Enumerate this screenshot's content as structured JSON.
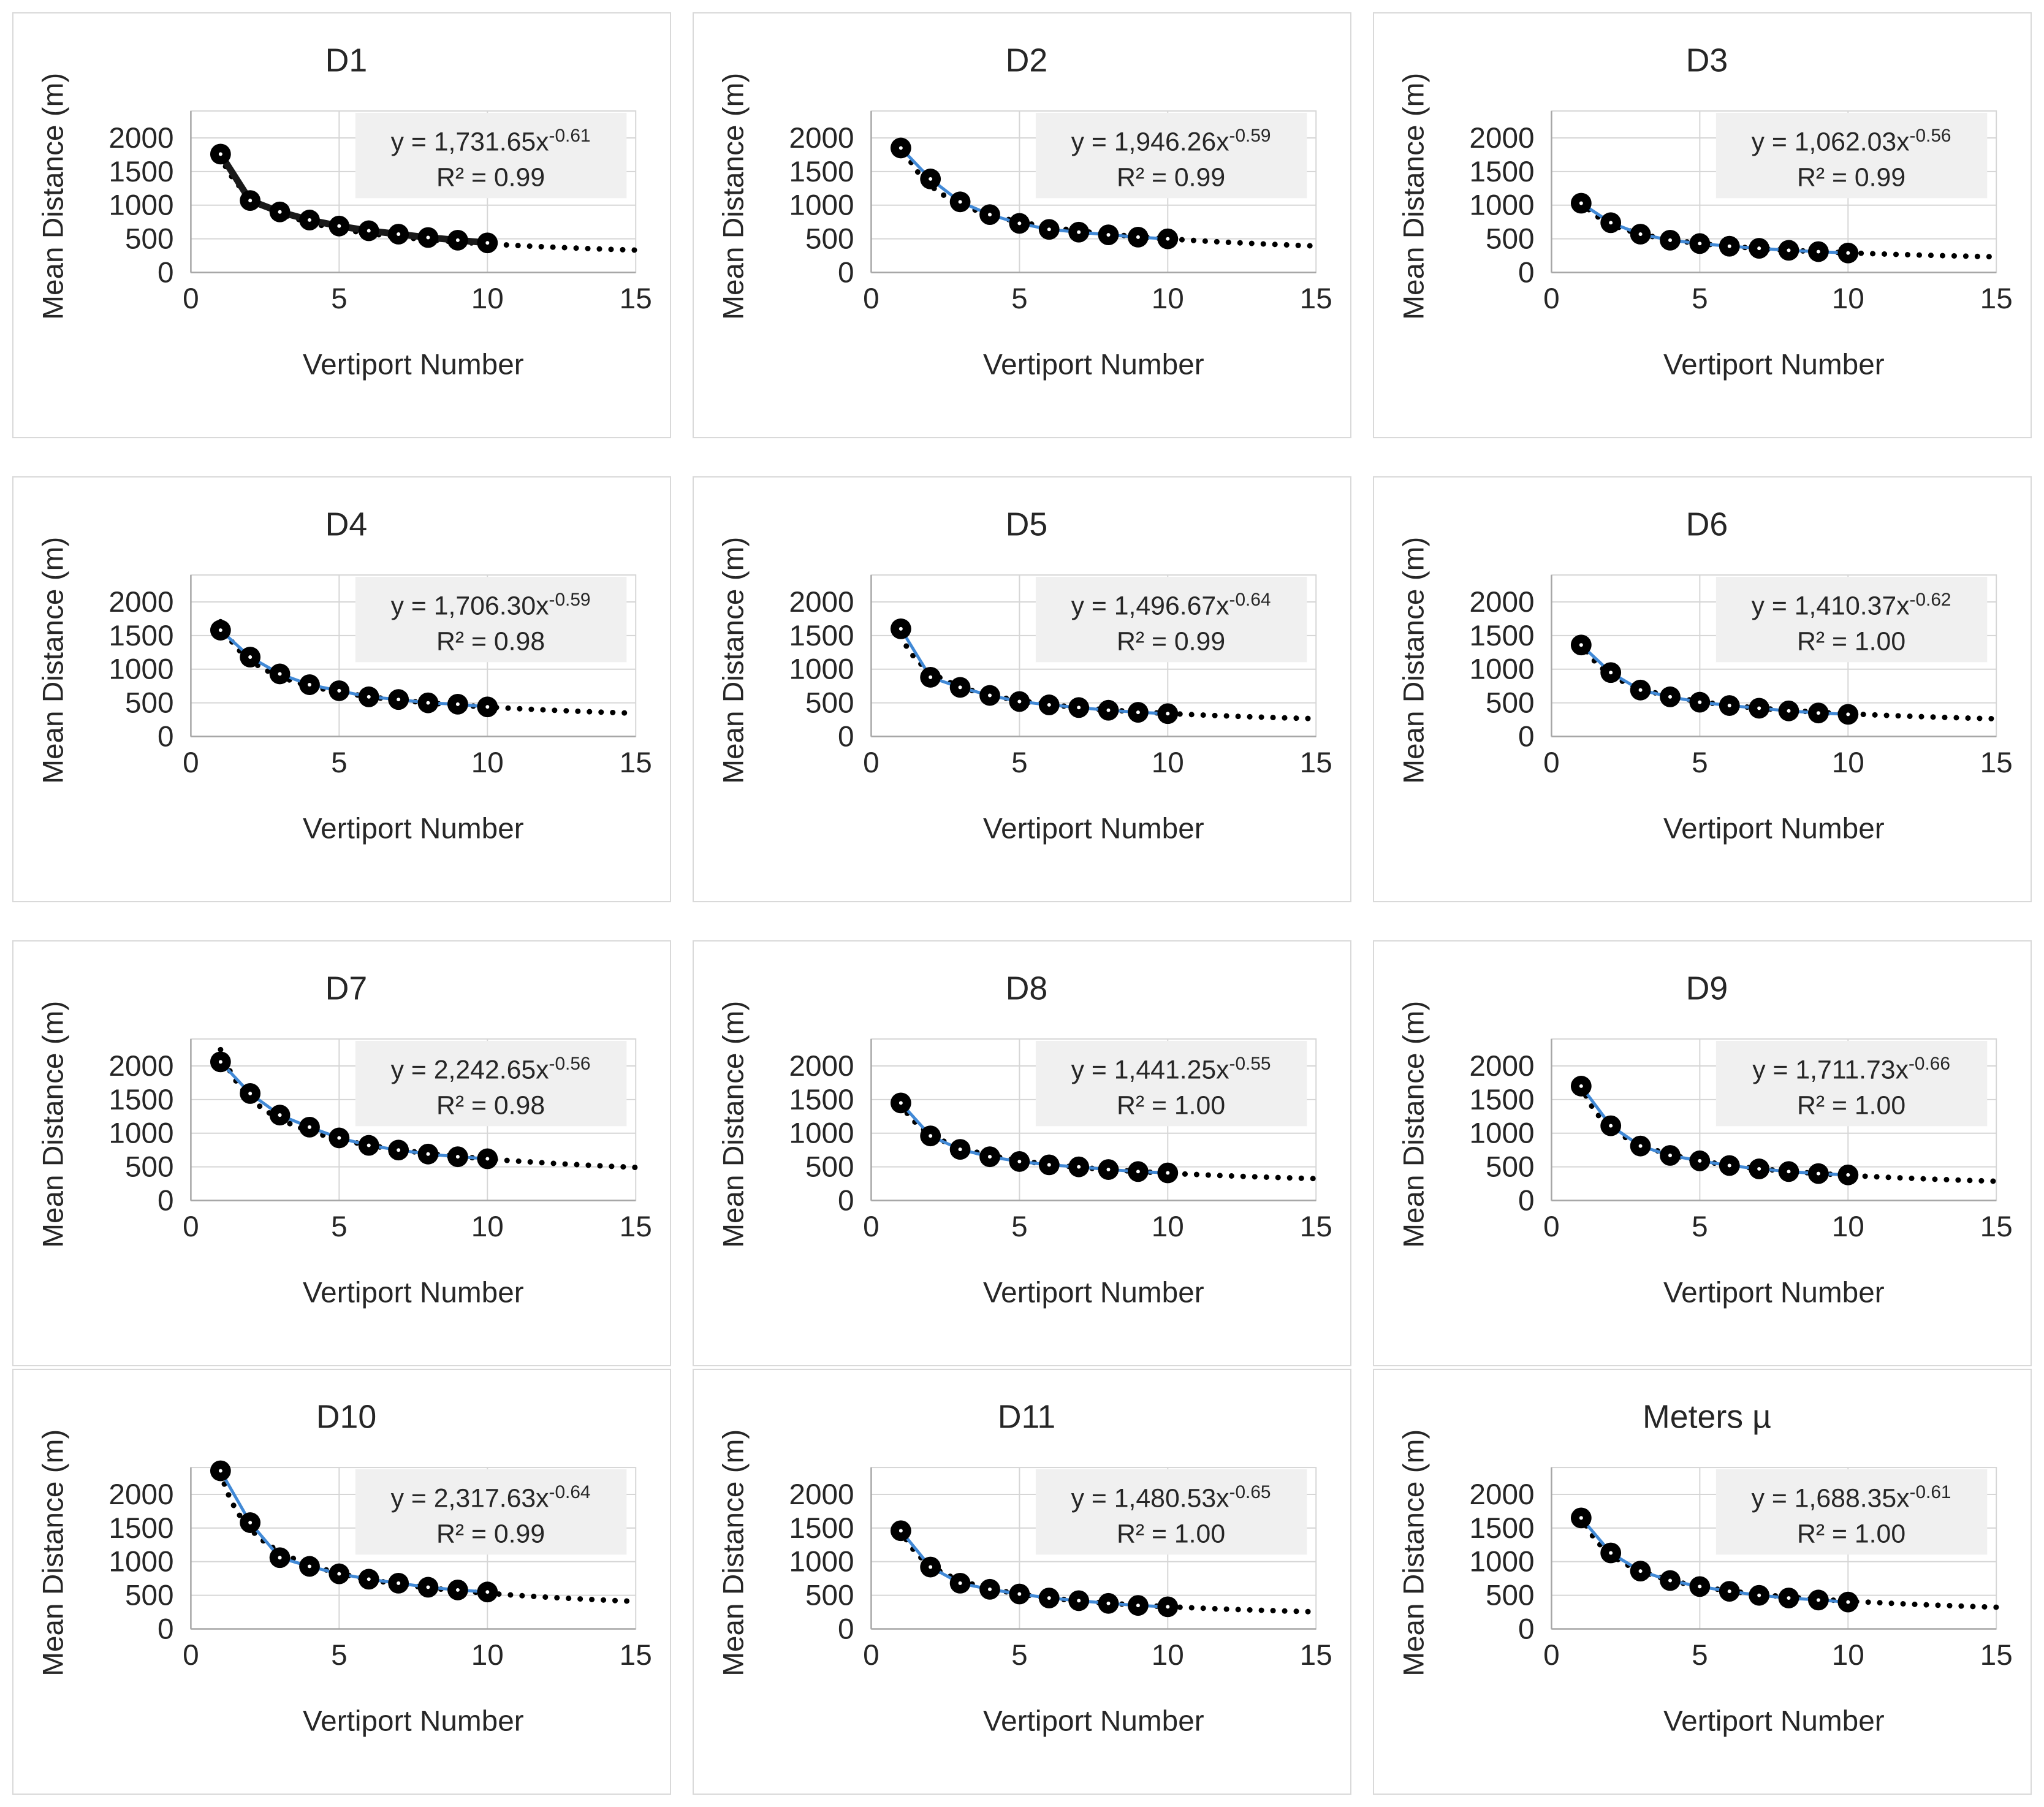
{
  "figure": {
    "y_axis_label": "Mean Distance (m)",
    "x_axis_label": "Vertiport Number",
    "y_ticks": [
      "0",
      "500",
      "1000",
      "1500",
      "2000"
    ],
    "x_ticks": [
      "0",
      "5",
      "10",
      "15"
    ],
    "colors": {
      "panel_border": "#d9d9d9",
      "gridline": "#d6d6d6",
      "axis_line": "#a6a6a6",
      "marker": "#000000",
      "marker_center": "#ffffff",
      "series_blue": "#4189d6",
      "series_black": "#1a1a1a",
      "trendline": "#000000",
      "equation_bg": "#f0f0f0",
      "text": "#262626"
    }
  },
  "chart_data": [
    {
      "type": "scatter",
      "title": "D1",
      "xlabel": "Vertiport Number",
      "ylabel": "Mean Distance (m)",
      "xlim": [
        0,
        15
      ],
      "ylim": [
        0,
        2400
      ],
      "x": [
        1,
        2,
        3,
        4,
        5,
        6,
        7,
        8,
        9,
        10
      ],
      "y": [
        1760,
        1070,
        900,
        780,
        690,
        620,
        570,
        520,
        480,
        440
      ],
      "trend": {
        "a": 1731.65,
        "b": -0.61,
        "range": [
          1,
          15
        ]
      },
      "equation": {
        "base": "y = 1,731.65x",
        "exponent": "-0.61",
        "r2": "R² = 0.99"
      },
      "series_color": "#1a1a1a",
      "series_width": 11
    },
    {
      "type": "scatter",
      "title": "D2",
      "xlabel": "Vertiport Number",
      "ylabel": "Mean Distance (m)",
      "xlim": [
        0,
        15
      ],
      "ylim": [
        0,
        2400
      ],
      "x": [
        1,
        2,
        3,
        4,
        5,
        6,
        7,
        8,
        9,
        10
      ],
      "y": [
        1850,
        1390,
        1050,
        860,
        730,
        640,
        600,
        560,
        525,
        500
      ],
      "trend": {
        "a": 1946.26,
        "b": -0.59,
        "range": [
          1,
          15
        ]
      },
      "equation": {
        "base": "y = 1,946.26x",
        "exponent": "-0.59",
        "r2": "R² = 0.99"
      },
      "series_color": "#4189d6",
      "series_width": 5
    },
    {
      "type": "scatter",
      "title": "D3",
      "xlabel": "Vertiport Number",
      "ylabel": "Mean Distance (m)",
      "xlim": [
        0,
        15
      ],
      "ylim": [
        0,
        2400
      ],
      "x": [
        1,
        2,
        3,
        4,
        5,
        6,
        7,
        8,
        9,
        10
      ],
      "y": [
        1030,
        740,
        570,
        480,
        430,
        390,
        360,
        330,
        310,
        290
      ],
      "trend": {
        "a": 1062.03,
        "b": -0.56,
        "range": [
          1,
          15
        ]
      },
      "equation": {
        "base": "y = 1,062.03x",
        "exponent": "-0.56",
        "r2": "R² = 0.99"
      },
      "series_color": "#4189d6",
      "series_width": 5
    },
    {
      "type": "scatter",
      "title": "D4",
      "xlabel": "Vertiport Number",
      "ylabel": "Mean Distance (m)",
      "xlim": [
        0,
        15
      ],
      "ylim": [
        0,
        2400
      ],
      "x": [
        1,
        2,
        3,
        4,
        5,
        6,
        7,
        8,
        9,
        10
      ],
      "y": [
        1580,
        1180,
        930,
        770,
        680,
        590,
        550,
        500,
        480,
        440
      ],
      "trend": {
        "a": 1706.3,
        "b": -0.59,
        "range": [
          1,
          15
        ]
      },
      "equation": {
        "base": "y = 1,706.30x",
        "exponent": "-0.59",
        "r2": "R² = 0.98"
      },
      "series_color": "#4189d6",
      "series_width": 5
    },
    {
      "type": "scatter",
      "title": "D5",
      "xlabel": "Vertiport Number",
      "ylabel": "Mean Distance (m)",
      "xlim": [
        0,
        15
      ],
      "ylim": [
        0,
        2400
      ],
      "x": [
        1,
        2,
        3,
        4,
        5,
        6,
        7,
        8,
        9,
        10
      ],
      "y": [
        1600,
        880,
        730,
        610,
        520,
        470,
        430,
        390,
        360,
        340
      ],
      "trend": {
        "a": 1496.67,
        "b": -0.64,
        "range": [
          1,
          15
        ]
      },
      "equation": {
        "base": "y = 1,496.67x",
        "exponent": "-0.64",
        "r2": "R² = 0.99"
      },
      "series_color": "#4189d6",
      "series_width": 5
    },
    {
      "type": "scatter",
      "title": "D6",
      "xlabel": "Vertiport Number",
      "ylabel": "Mean Distance (m)",
      "xlim": [
        0,
        15
      ],
      "ylim": [
        0,
        2400
      ],
      "x": [
        1,
        2,
        3,
        4,
        5,
        6,
        7,
        8,
        9,
        10
      ],
      "y": [
        1360,
        950,
        690,
        590,
        510,
        460,
        420,
        380,
        350,
        330
      ],
      "trend": {
        "a": 1410.37,
        "b": -0.62,
        "range": [
          1,
          15
        ]
      },
      "equation": {
        "base": "y = 1,410.37x",
        "exponent": "-0.62",
        "r2": "R² = 1.00"
      },
      "series_color": "#4189d6",
      "series_width": 5
    },
    {
      "type": "scatter",
      "title": "D7",
      "xlabel": "Vertiport Number",
      "ylabel": "Mean Distance (m)",
      "xlim": [
        0,
        15
      ],
      "ylim": [
        0,
        2400
      ],
      "x": [
        1,
        2,
        3,
        4,
        5,
        6,
        7,
        8,
        9,
        10
      ],
      "y": [
        2060,
        1590,
        1270,
        1090,
        930,
        820,
        750,
        690,
        650,
        620
      ],
      "trend": {
        "a": 2242.65,
        "b": -0.56,
        "range": [
          1,
          15
        ]
      },
      "equation": {
        "base": "y = 2,242.65x",
        "exponent": "-0.56",
        "r2": "R² = 0.98"
      },
      "series_color": "#4189d6",
      "series_width": 5
    },
    {
      "type": "scatter",
      "title": "D8",
      "xlabel": "Vertiport Number",
      "ylabel": "Mean Distance (m)",
      "xlim": [
        0,
        15
      ],
      "ylim": [
        0,
        2400
      ],
      "x": [
        1,
        2,
        3,
        4,
        5,
        6,
        7,
        8,
        9,
        10
      ],
      "y": [
        1450,
        960,
        760,
        650,
        580,
        530,
        500,
        460,
        430,
        410
      ],
      "trend": {
        "a": 1441.25,
        "b": -0.55,
        "range": [
          1,
          15
        ]
      },
      "equation": {
        "base": "y = 1,441.25x",
        "exponent": "-0.55",
        "r2": "R² = 1.00"
      },
      "series_color": "#4189d6",
      "series_width": 5
    },
    {
      "type": "scatter",
      "title": "D9",
      "xlabel": "Vertiport Number",
      "ylabel": "Mean Distance (m)",
      "xlim": [
        0,
        15
      ],
      "ylim": [
        0,
        2400
      ],
      "x": [
        1,
        2,
        3,
        4,
        5,
        6,
        7,
        8,
        9,
        10
      ],
      "y": [
        1700,
        1110,
        810,
        670,
        590,
        520,
        470,
        430,
        400,
        380
      ],
      "trend": {
        "a": 1711.73,
        "b": -0.66,
        "range": [
          1,
          15
        ]
      },
      "equation": {
        "base": "y = 1,711.73x",
        "exponent": "-0.66",
        "r2": "R² = 1.00"
      },
      "series_color": "#4189d6",
      "series_width": 5
    },
    {
      "type": "scatter",
      "title": "D10",
      "xlabel": "Vertiport Number",
      "ylabel": "Mean Distance (m)",
      "xlim": [
        0,
        15
      ],
      "ylim": [
        0,
        2400
      ],
      "x": [
        1,
        2,
        3,
        4,
        5,
        6,
        7,
        8,
        9,
        10
      ],
      "y": [
        2350,
        1580,
        1060,
        930,
        820,
        740,
        680,
        620,
        580,
        550
      ],
      "trend": {
        "a": 2317.63,
        "b": -0.64,
        "range": [
          1,
          15
        ]
      },
      "equation": {
        "base": "y = 2,317.63x",
        "exponent": "-0.64",
        "r2": "R² = 0.99"
      },
      "series_color": "#4189d6",
      "series_width": 5
    },
    {
      "type": "scatter",
      "title": "D11",
      "xlabel": "Vertiport Number",
      "ylabel": "Mean Distance (m)",
      "xlim": [
        0,
        15
      ],
      "ylim": [
        0,
        2400
      ],
      "x": [
        1,
        2,
        3,
        4,
        5,
        6,
        7,
        8,
        9,
        10
      ],
      "y": [
        1460,
        920,
        680,
        590,
        520,
        460,
        420,
        380,
        350,
        330
      ],
      "trend": {
        "a": 1480.53,
        "b": -0.65,
        "range": [
          1,
          15
        ]
      },
      "equation": {
        "base": "y = 1,480.53x",
        "exponent": "-0.65",
        "r2": "R² = 1.00"
      },
      "series_color": "#4189d6",
      "series_width": 5
    },
    {
      "type": "scatter",
      "title": "Meters µ",
      "xlabel": "Vertiport Number",
      "ylabel": "Mean Distance (m)",
      "xlim": [
        0,
        15
      ],
      "ylim": [
        0,
        2400
      ],
      "x": [
        1,
        2,
        3,
        4,
        5,
        6,
        7,
        8,
        9,
        10
      ],
      "y": [
        1650,
        1130,
        860,
        720,
        630,
        560,
        500,
        460,
        430,
        400
      ],
      "trend": {
        "a": 1688.35,
        "b": -0.61,
        "range": [
          1,
          15
        ]
      },
      "equation": {
        "base": "y = 1,688.35x",
        "exponent": "-0.61",
        "r2": "R² = 1.00"
      },
      "series_color": "#4189d6",
      "series_width": 5
    }
  ]
}
